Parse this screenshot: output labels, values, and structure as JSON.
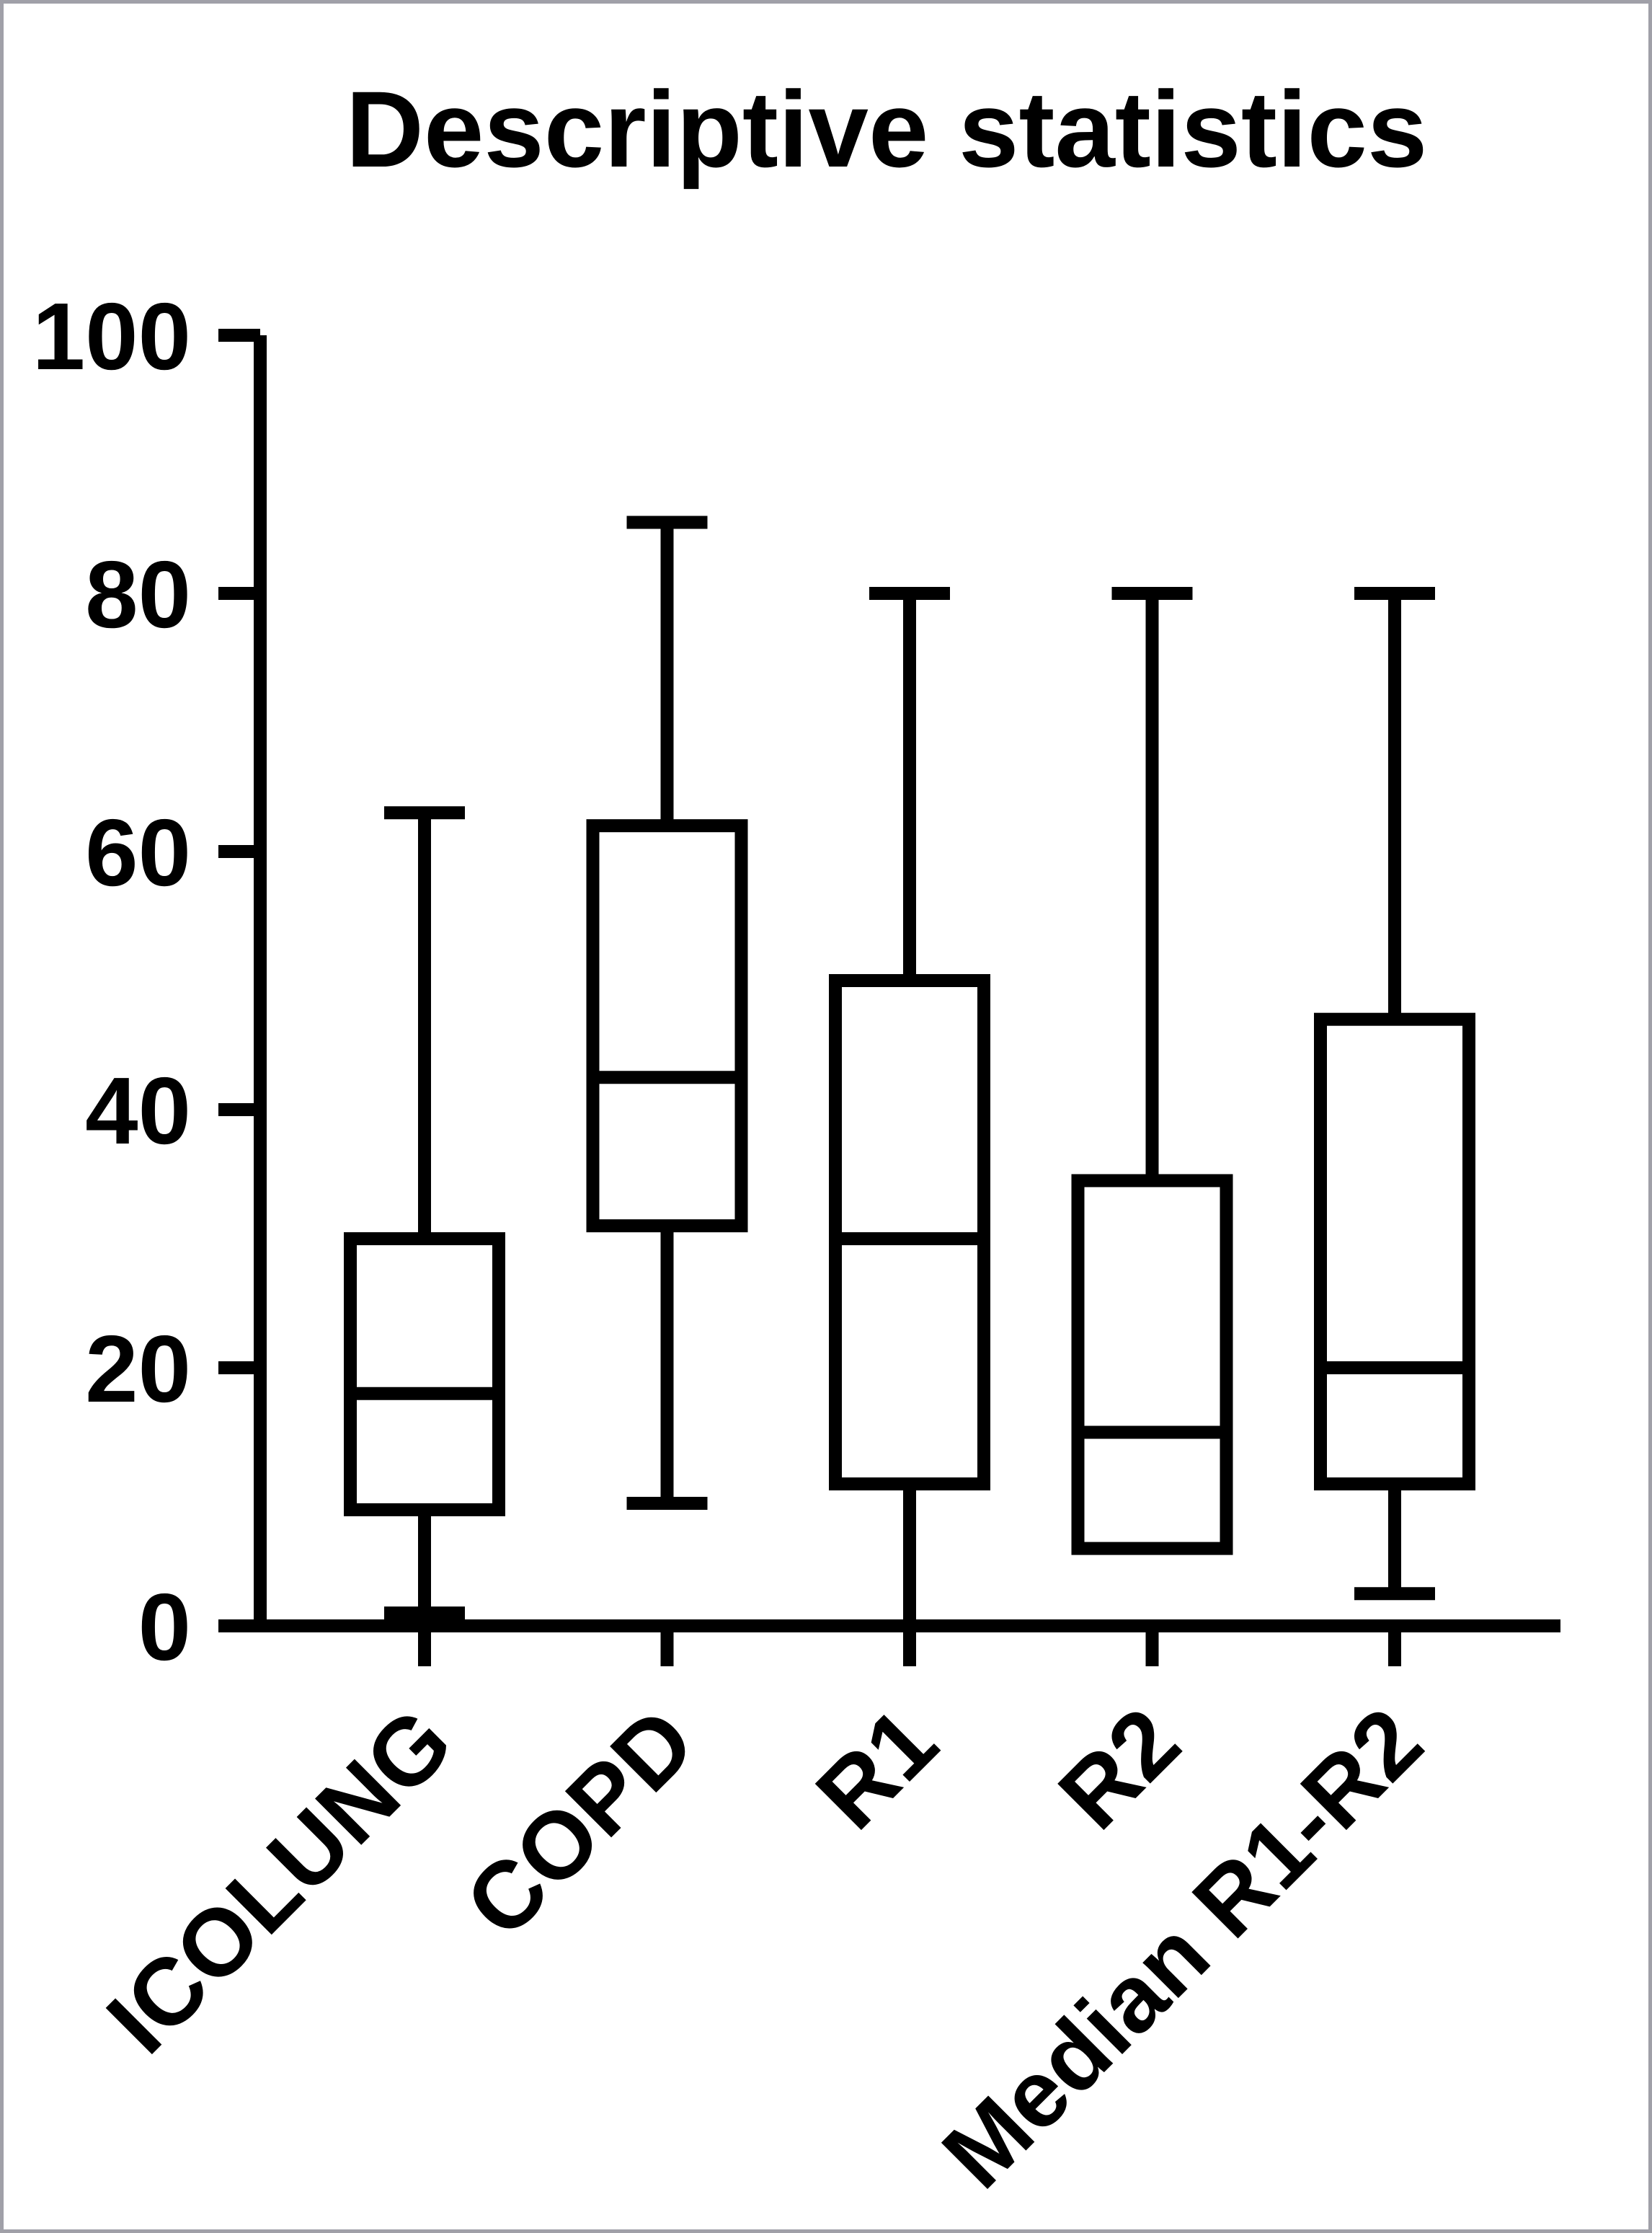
{
  "chart_data": {
    "type": "boxplot",
    "title": "Descriptive statistics",
    "categories": [
      "ICOLUNG",
      "COPD",
      "R1",
      "R2",
      "Median R1-R2"
    ],
    "series": [
      {
        "name": "ICOLUNG",
        "min": 1,
        "q1": 9,
        "median": 18,
        "q3": 30,
        "max": 63
      },
      {
        "name": "COPD",
        "min": 9.5,
        "q1": 31,
        "median": 42.5,
        "q3": 62,
        "max": 85.5
      },
      {
        "name": "R1",
        "min": 0,
        "q1": 11,
        "median": 30,
        "q3": 50,
        "max": 80
      },
      {
        "name": "R2",
        "min": 6,
        "q1": 6,
        "median": 15,
        "q3": 34.5,
        "max": 80
      },
      {
        "name": "Median R1-R2",
        "min": 2.5,
        "q1": 11,
        "median": 20,
        "q3": 47,
        "max": 80
      }
    ],
    "ylim": [
      0,
      100
    ],
    "yticks": [
      0,
      20,
      40,
      60,
      80,
      100
    ],
    "xlabel": "",
    "ylabel": "",
    "grid": false,
    "legend": false,
    "box_fill": "#ffffff",
    "line_color": "#000000",
    "background": "#ffffff",
    "border_color": "#a0a0a8"
  }
}
